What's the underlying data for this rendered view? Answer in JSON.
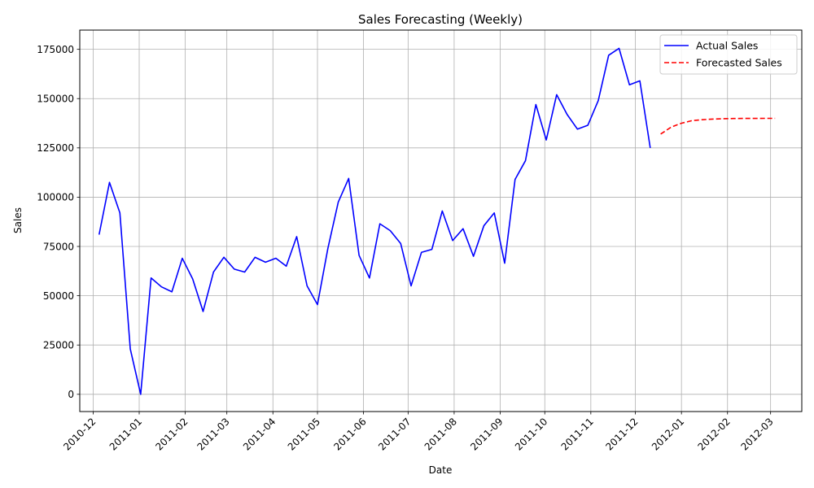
{
  "chart_data": {
    "type": "line",
    "title": "Sales Forecasting (Weekly)",
    "xlabel": "Date",
    "ylabel": "Sales",
    "ylim": [
      -8750,
      184750
    ],
    "xlim": [
      "2010-11-22",
      "2012-03-22"
    ],
    "y_ticks": [
      0,
      25000,
      50000,
      75000,
      100000,
      125000,
      150000,
      175000
    ],
    "x_ticks": [
      "2010-12",
      "2011-01",
      "2011-02",
      "2011-03",
      "2011-04",
      "2011-05",
      "2011-06",
      "2011-07",
      "2011-08",
      "2011-09",
      "2011-10",
      "2011-11",
      "2011-12",
      "2012-01",
      "2012-02",
      "2012-03"
    ],
    "x_tick_dates": [
      "2010-12-01",
      "2011-01-01",
      "2011-02-01",
      "2011-03-01",
      "2011-04-01",
      "2011-05-01",
      "2011-06-01",
      "2011-07-01",
      "2011-08-01",
      "2011-09-01",
      "2011-10-01",
      "2011-11-01",
      "2011-12-01",
      "2012-01-01",
      "2012-02-01",
      "2012-03-01"
    ],
    "grid": true,
    "legend_position": "top-right",
    "series": [
      {
        "name": "Actual Sales",
        "color": "#0000ff",
        "style": "solid",
        "points": [
          [
            "2010-12-05",
            81000
          ],
          [
            "2010-12-12",
            107500
          ],
          [
            "2010-12-19",
            92000
          ],
          [
            "2010-12-26",
            23000
          ],
          [
            "2011-01-02",
            0
          ],
          [
            "2011-01-09",
            59000
          ],
          [
            "2011-01-16",
            54500
          ],
          [
            "2011-01-23",
            52000
          ],
          [
            "2011-01-30",
            69000
          ],
          [
            "2011-02-06",
            58500
          ],
          [
            "2011-02-13",
            42000
          ],
          [
            "2011-02-20",
            62000
          ],
          [
            "2011-02-27",
            69500
          ],
          [
            "2011-03-06",
            63500
          ],
          [
            "2011-03-13",
            62000
          ],
          [
            "2011-03-20",
            69500
          ],
          [
            "2011-03-27",
            67000
          ],
          [
            "2011-04-03",
            69000
          ],
          [
            "2011-04-10",
            65000
          ],
          [
            "2011-04-17",
            80000
          ],
          [
            "2011-04-24",
            55000
          ],
          [
            "2011-05-01",
            45500
          ],
          [
            "2011-05-08",
            74000
          ],
          [
            "2011-05-15",
            97500
          ],
          [
            "2011-05-22",
            109500
          ],
          [
            "2011-05-29",
            70500
          ],
          [
            "2011-06-05",
            59000
          ],
          [
            "2011-06-12",
            86500
          ],
          [
            "2011-06-19",
            83000
          ],
          [
            "2011-06-26",
            76500
          ],
          [
            "2011-07-03",
            55000
          ],
          [
            "2011-07-10",
            72000
          ],
          [
            "2011-07-17",
            73500
          ],
          [
            "2011-07-24",
            93000
          ],
          [
            "2011-07-31",
            78000
          ],
          [
            "2011-08-07",
            84000
          ],
          [
            "2011-08-14",
            70000
          ],
          [
            "2011-08-21",
            85500
          ],
          [
            "2011-08-28",
            92000
          ],
          [
            "2011-09-04",
            66500
          ],
          [
            "2011-09-11",
            109000
          ],
          [
            "2011-09-18",
            118500
          ],
          [
            "2011-09-25",
            147000
          ],
          [
            "2011-10-02",
            129000
          ],
          [
            "2011-10-09",
            152000
          ],
          [
            "2011-10-16",
            142000
          ],
          [
            "2011-10-23",
            134500
          ],
          [
            "2011-10-30",
            136500
          ],
          [
            "2011-11-06",
            149000
          ],
          [
            "2011-11-13",
            172000
          ],
          [
            "2011-11-20",
            175500
          ],
          [
            "2011-11-27",
            157000
          ],
          [
            "2011-12-04",
            159000
          ],
          [
            "2011-12-11",
            125000
          ]
        ]
      },
      {
        "name": "Forecasted Sales",
        "color": "#ff0000",
        "style": "dashed",
        "points": [
          [
            "2011-12-18",
            132000
          ],
          [
            "2011-12-25",
            135500
          ],
          [
            "2012-01-01",
            137500
          ],
          [
            "2012-01-08",
            138800
          ],
          [
            "2012-01-15",
            139300
          ],
          [
            "2012-01-22",
            139600
          ],
          [
            "2012-01-29",
            139800
          ],
          [
            "2012-02-05",
            139900
          ],
          [
            "2012-02-12",
            139950
          ],
          [
            "2012-02-19",
            139970
          ],
          [
            "2012-02-26",
            139980
          ],
          [
            "2012-03-04",
            139990
          ]
        ]
      }
    ]
  }
}
